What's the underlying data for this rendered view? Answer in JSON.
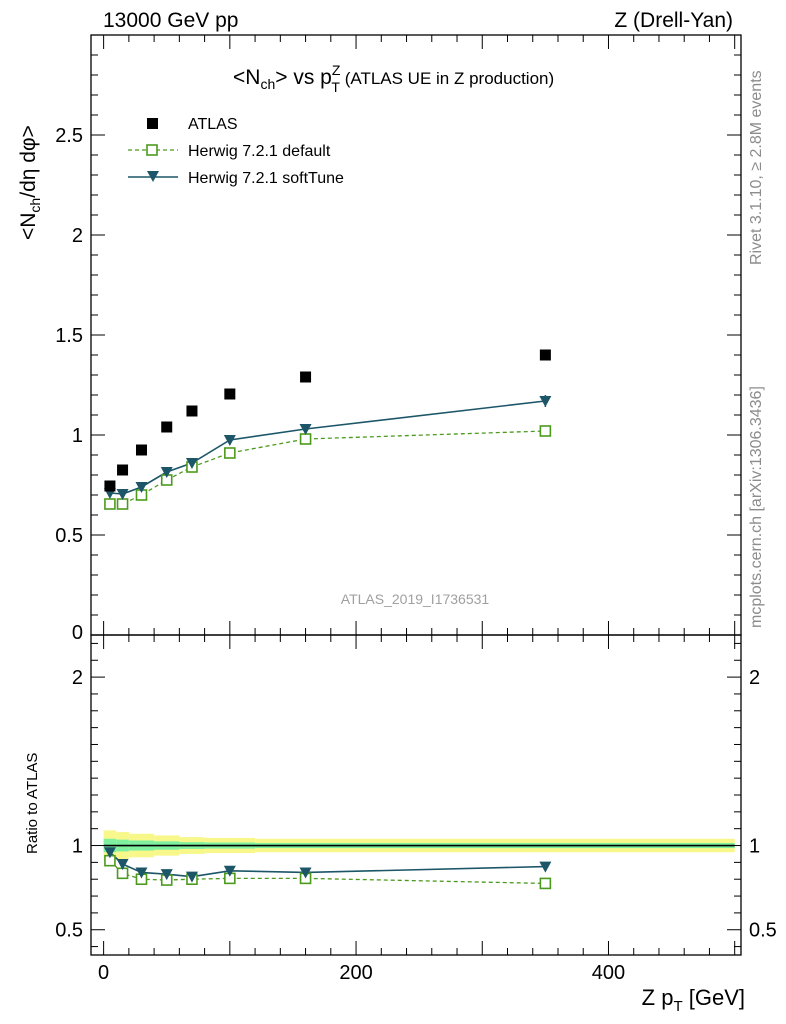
{
  "header": {
    "left": "13000 GeV pp",
    "right": "Z (Drell-Yan)"
  },
  "side": {
    "rivet": "Rivet 3.1.10, ≥ 2.8M events",
    "mcplots": "mcplots.cern.ch [arXiv:1306.3436]"
  },
  "colors": {
    "atlas": "#000000",
    "default": "#4c9a1d",
    "softtune": "#1c5668",
    "band_inner": "#7ef0a0",
    "band_outer": "#f8f88a"
  },
  "chart_data": [
    {
      "type": "scatter",
      "title_parts": {
        "a": "<N",
        "b": "ch",
        "c": "> vs p",
        "d": "Z",
        "e": "T",
        "f": " (ATLAS UE in Z production)"
      },
      "ylabel_parts": {
        "a": "<N",
        "b": "ch",
        "c": "/dη dφ>"
      },
      "analysis_label": "ATLAS_2019_I1736531",
      "xlim": [
        -10,
        505
      ],
      "ylim": [
        0,
        3.0
      ],
      "yticks": [
        "0.5",
        "1",
        "1.5",
        "2",
        "2.5"
      ],
      "ytick_values": [
        0.5,
        1,
        1.5,
        2,
        2.5
      ],
      "ytick_zero_label": "0",
      "legend_position": "top-left",
      "x": [
        5,
        15,
        30,
        50,
        70,
        100,
        160,
        350
      ],
      "series": [
        {
          "name": "ATLAS",
          "marker": "square-filled",
          "values": [
            0.745,
            0.825,
            0.925,
            1.04,
            1.12,
            1.205,
            1.29,
            1.4
          ]
        },
        {
          "name": "Herwig 7.2.1 default",
          "marker": "square-open",
          "line": "dashed",
          "values": [
            0.655,
            0.655,
            0.7,
            0.775,
            0.84,
            0.91,
            0.98,
            1.02
          ]
        },
        {
          "name": "Herwig 7.2.1 softTune",
          "marker": "triangle-down",
          "line": "solid",
          "values": [
            0.71,
            0.705,
            0.74,
            0.815,
            0.86,
            0.975,
            1.03,
            1.17
          ]
        }
      ]
    },
    {
      "type": "line",
      "ylabel": "Ratio to ATLAS",
      "xlabel_parts": {
        "a": "Z p",
        "b": "T",
        "c": " [GeV]"
      },
      "xlim": [
        -10,
        505
      ],
      "ylim": [
        0.35,
        2.25
      ],
      "yticks": [
        "0.5",
        "1",
        "2"
      ],
      "ytick_values": [
        0.5,
        1,
        2
      ],
      "xticks": [
        "0",
        "200",
        "400"
      ],
      "xtick_values": [
        0,
        200,
        400
      ],
      "x": [
        5,
        15,
        30,
        50,
        70,
        100,
        160,
        350
      ],
      "reference": 1,
      "band": {
        "x_edges": [
          0,
          10,
          20,
          40,
          60,
          80,
          120,
          200,
          500
        ],
        "inner": [
          0.04,
          0.035,
          0.03,
          0.025,
          0.02,
          0.018,
          0.015,
          0.015
        ],
        "outer": [
          0.09,
          0.08,
          0.07,
          0.06,
          0.05,
          0.045,
          0.04,
          0.04
        ]
      },
      "series": [
        {
          "name": "Herwig 7.2.1 default",
          "values": [
            0.91,
            0.835,
            0.8,
            0.795,
            0.8,
            0.805,
            0.805,
            0.775
          ]
        },
        {
          "name": "Herwig 7.2.1 softTune",
          "values": [
            0.96,
            0.89,
            0.84,
            0.83,
            0.815,
            0.85,
            0.84,
            0.875
          ]
        }
      ]
    }
  ]
}
